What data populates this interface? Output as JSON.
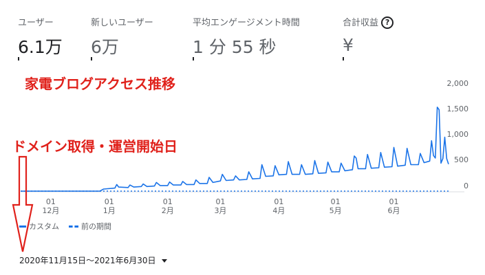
{
  "metrics": [
    {
      "label": "ユーザー",
      "value": "6.1万"
    },
    {
      "label": "新しいユーザー",
      "value": "6万"
    },
    {
      "label": "平均エンゲージメント時間",
      "value": "1 分 55 秒"
    },
    {
      "label": "合計収益",
      "value": "¥"
    }
  ],
  "help_icon": {
    "glyph": "?",
    "icon": "help-circle-icon"
  },
  "annotations": {
    "title": "家電ブログアクセス推移",
    "start_label": "ドメイン取得・運営開始日"
  },
  "legend": {
    "custom": "カスタム",
    "previous": "前の期間"
  },
  "date_range": "2020年11月15日～2021年6月30日",
  "colors": {
    "accent": "#1a73e8",
    "annotation": "#e0211b"
  },
  "chart_data": {
    "type": "line",
    "y_ticks": [
      "2,000",
      "1,500",
      "1,000",
      "500",
      "0"
    ],
    "y_tick_values": [
      2000,
      1500,
      1000,
      500,
      0
    ],
    "ylim": [
      0,
      2000
    ],
    "x_ticks": [
      {
        "date": "2020-12-01",
        "day": "01",
        "month": "12月"
      },
      {
        "date": "2021-01-01",
        "day": "01",
        "month": "1月"
      },
      {
        "date": "2021-02-01",
        "day": "01",
        "month": "2月"
      },
      {
        "date": "2021-03-01",
        "day": "01",
        "month": "3月"
      },
      {
        "date": "2021-04-01",
        "day": "01",
        "month": "4月"
      },
      {
        "date": "2021-05-01",
        "day": "01",
        "month": "5月"
      },
      {
        "date": "2021-06-01",
        "day": "01",
        "month": "6月"
      }
    ],
    "x_range": [
      "2020-11-15",
      "2021-06-30"
    ],
    "series": [
      {
        "name": "カスタム",
        "style": "solid",
        "points": [
          [
            "2020-11-15",
            0
          ],
          [
            "2020-12-15",
            0
          ],
          [
            "2020-12-27",
            0
          ],
          [
            "2020-12-29",
            40
          ],
          [
            "2021-01-04",
            60
          ],
          [
            "2021-01-05",
            130
          ],
          [
            "2021-01-06",
            80
          ],
          [
            "2021-01-11",
            70
          ],
          [
            "2021-01-12",
            120
          ],
          [
            "2021-01-14",
            80
          ],
          [
            "2021-01-18",
            90
          ],
          [
            "2021-01-19",
            140
          ],
          [
            "2021-01-21",
            90
          ],
          [
            "2021-01-25",
            100
          ],
          [
            "2021-01-26",
            170
          ],
          [
            "2021-01-28",
            110
          ],
          [
            "2021-02-01",
            110
          ],
          [
            "2021-02-02",
            180
          ],
          [
            "2021-02-04",
            120
          ],
          [
            "2021-02-08",
            120
          ],
          [
            "2021-02-09",
            190
          ],
          [
            "2021-02-11",
            130
          ],
          [
            "2021-02-15",
            130
          ],
          [
            "2021-02-16",
            220
          ],
          [
            "2021-02-18",
            150
          ],
          [
            "2021-02-22",
            150
          ],
          [
            "2021-02-23",
            270
          ],
          [
            "2021-02-25",
            170
          ],
          [
            "2021-03-01",
            200
          ],
          [
            "2021-03-02",
            330
          ],
          [
            "2021-03-04",
            210
          ],
          [
            "2021-03-08",
            220
          ],
          [
            "2021-03-09",
            300
          ],
          [
            "2021-03-11",
            220
          ],
          [
            "2021-03-15",
            230
          ],
          [
            "2021-03-16",
            380
          ],
          [
            "2021-03-18",
            240
          ],
          [
            "2021-03-22",
            250
          ],
          [
            "2021-03-23",
            520
          ],
          [
            "2021-03-25",
            290
          ],
          [
            "2021-03-29",
            300
          ],
          [
            "2021-03-30",
            500
          ],
          [
            "2021-04-01",
            320
          ],
          [
            "2021-04-05",
            330
          ],
          [
            "2021-04-06",
            580
          ],
          [
            "2021-04-08",
            330
          ],
          [
            "2021-04-12",
            330
          ],
          [
            "2021-04-13",
            520
          ],
          [
            "2021-04-15",
            330
          ],
          [
            "2021-04-19",
            340
          ],
          [
            "2021-04-20",
            600
          ],
          [
            "2021-04-22",
            350
          ],
          [
            "2021-04-26",
            360
          ],
          [
            "2021-04-27",
            570
          ],
          [
            "2021-04-29",
            380
          ],
          [
            "2021-05-03",
            380
          ],
          [
            "2021-05-04",
            550
          ],
          [
            "2021-05-06",
            400
          ],
          [
            "2021-05-10",
            420
          ],
          [
            "2021-05-11",
            690
          ],
          [
            "2021-05-12",
            650
          ],
          [
            "2021-05-13",
            440
          ],
          [
            "2021-05-17",
            440
          ],
          [
            "2021-05-18",
            720
          ],
          [
            "2021-05-20",
            450
          ],
          [
            "2021-05-24",
            460
          ],
          [
            "2021-05-25",
            760
          ],
          [
            "2021-05-27",
            470
          ],
          [
            "2021-05-31",
            480
          ],
          [
            "2021-06-01",
            860
          ],
          [
            "2021-06-03",
            490
          ],
          [
            "2021-06-07",
            510
          ],
          [
            "2021-06-08",
            840
          ],
          [
            "2021-06-10",
            520
          ],
          [
            "2021-06-14",
            520
          ],
          [
            "2021-06-15",
            740
          ],
          [
            "2021-06-17",
            560
          ],
          [
            "2021-06-20",
            590
          ],
          [
            "2021-06-21",
            990
          ],
          [
            "2021-06-22",
            700
          ],
          [
            "2021-06-23",
            650
          ],
          [
            "2021-06-24",
            1650
          ],
          [
            "2021-06-25",
            1600
          ],
          [
            "2021-06-26",
            550
          ],
          [
            "2021-06-27",
            640
          ],
          [
            "2021-06-28",
            1060
          ],
          [
            "2021-06-29",
            640
          ],
          [
            "2021-06-30",
            530
          ]
        ]
      },
      {
        "name": "前の期間",
        "style": "dashed",
        "points": [
          [
            "2020-11-15",
            0
          ],
          [
            "2021-06-30",
            0
          ]
        ]
      }
    ]
  }
}
